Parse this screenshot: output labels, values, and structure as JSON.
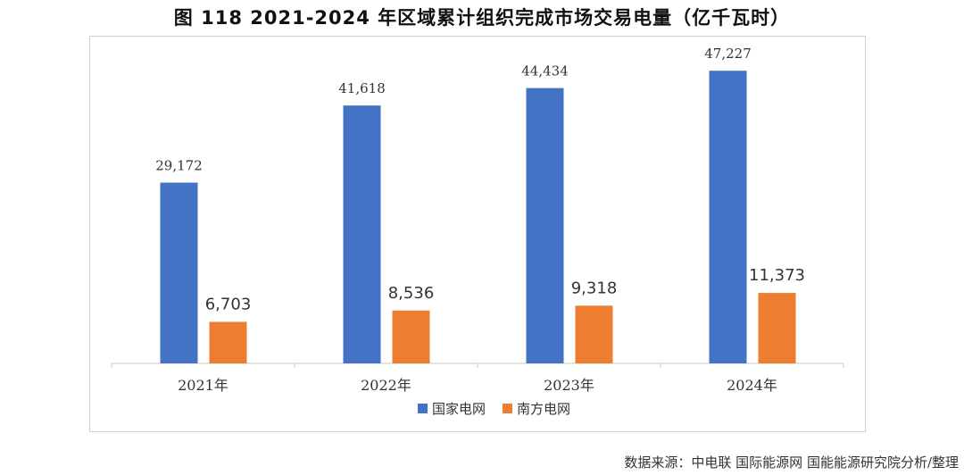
{
  "title": "图 118 2021-2024 年区域累计组织完成市场交易电量（亿千瓦时）",
  "source": "数据来源：中电联 国际能源网 国能能源研究院分析/整理",
  "chart_data": {
    "type": "bar",
    "categories": [
      "2021年",
      "2022年",
      "2023年",
      "2024年"
    ],
    "series": [
      {
        "name": "国家电网",
        "color": "#4472C4",
        "values": [
          29172,
          41618,
          44434,
          47227
        ],
        "labels": [
          "29,172",
          "41,618",
          "44,434",
          "47,227"
        ]
      },
      {
        "name": "南方电网",
        "color": "#ED7D31",
        "values": [
          6703,
          8536,
          9318,
          11373
        ],
        "labels": [
          "6,703",
          "8,536",
          "9,318",
          "11,373"
        ]
      }
    ],
    "ylim": [
      0,
      50000
    ],
    "grid": false,
    "legend": "bottom"
  }
}
